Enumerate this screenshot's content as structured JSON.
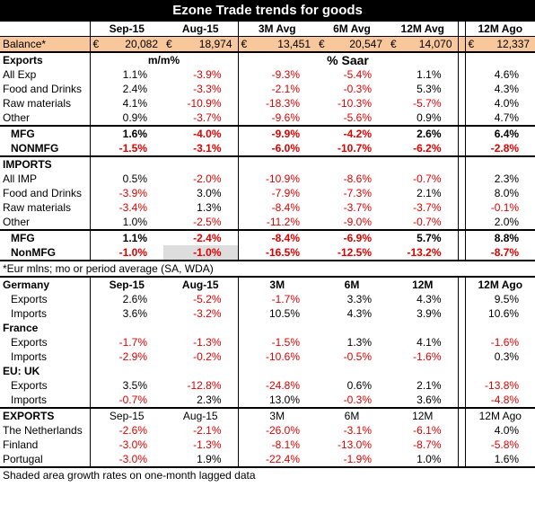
{
  "title": "Ezone Trade trends for goods",
  "columns": [
    "Sep-15",
    "Aug-15",
    "3M Avg",
    "6M Avg",
    "12M Avg",
    "12M Ago"
  ],
  "balance": {
    "label": "Balance*",
    "currency": "€",
    "values": [
      "20,082",
      "18,974",
      "13,451",
      "20,547",
      "14,070",
      "12,337"
    ]
  },
  "sections": [
    {
      "head": {
        "label": "Exports",
        "mm": "m/m%",
        "saar": "% Saar"
      },
      "rows": [
        {
          "label": "All Exp",
          "values": [
            "1.1%",
            "-3.9%",
            "-9.3%",
            "-5.4%",
            "1.1%",
            "4.6%"
          ]
        },
        {
          "label": "Food and Drinks",
          "values": [
            "2.4%",
            "-3.3%",
            "-2.1%",
            "-0.3%",
            "5.3%",
            "4.3%"
          ]
        },
        {
          "label": "Raw materials",
          "values": [
            "4.1%",
            "-10.9%",
            "-18.3%",
            "-10.3%",
            "-5.7%",
            "4.0%"
          ]
        },
        {
          "label": "Other",
          "values": [
            "0.9%",
            "-3.7%",
            "-9.6%",
            "-5.6%",
            "0.9%",
            "4.7%"
          ]
        }
      ]
    },
    {
      "rows": [
        {
          "label": "MFG",
          "bold": true,
          "indent": true,
          "values": [
            "1.6%",
            "-4.0%",
            "-9.9%",
            "-4.2%",
            "2.6%",
            "6.4%"
          ]
        },
        {
          "label": "NONMFG",
          "bold": true,
          "indent": true,
          "values": [
            "-1.5%",
            "-3.1%",
            "-6.0%",
            "-10.7%",
            "-6.2%",
            "-2.8%"
          ]
        }
      ]
    },
    {
      "head": {
        "label": "IMPORTS"
      },
      "rows": [
        {
          "label": "All IMP",
          "values": [
            "0.5%",
            "-2.0%",
            "-10.9%",
            "-8.6%",
            "-0.7%",
            "2.3%"
          ]
        },
        {
          "label": "Food and Drinks",
          "values": [
            "-3.9%",
            "3.0%",
            "-7.9%",
            "-7.3%",
            "2.1%",
            "8.0%"
          ]
        },
        {
          "label": "Raw materials",
          "values": [
            "-3.4%",
            "1.3%",
            "-8.4%",
            "-3.7%",
            "-3.7%",
            "-0.1%"
          ]
        },
        {
          "label": "Other",
          "values": [
            "1.0%",
            "-2.5%",
            "-11.2%",
            "-9.0%",
            "-0.7%",
            "2.0%"
          ]
        }
      ]
    },
    {
      "rows": [
        {
          "label": "MFG",
          "bold": true,
          "indent": true,
          "values": [
            "1.1%",
            "-2.4%",
            "-8.4%",
            "-6.9%",
            "5.7%",
            "8.8%"
          ]
        },
        {
          "label": "NonMFG",
          "bold": true,
          "indent": true,
          "shaded": [
            1
          ],
          "values": [
            "-1.0%",
            "-1.0%",
            "-16.5%",
            "-12.5%",
            "-13.2%",
            "-8.7%"
          ]
        }
      ]
    },
    {
      "note": "*Eur mlns; mo or period average (SA, WDA)"
    },
    {
      "head": {
        "label": "Germany",
        "cols": [
          "Sep-15",
          "Aug-15",
          "3M",
          "6M",
          "12M",
          "12M Ago"
        ],
        "bold": true
      },
      "rows": [
        {
          "label": "Exports",
          "indent": true,
          "values": [
            "2.6%",
            "-5.2%",
            "-1.7%",
            "3.3%",
            "4.3%",
            "9.5%"
          ]
        },
        {
          "label": "Imports",
          "indent": true,
          "values": [
            "3.6%",
            "-3.2%",
            "10.5%",
            "4.3%",
            "3.9%",
            "10.6%"
          ]
        },
        {
          "label": "France",
          "bold": true
        },
        {
          "label": "Exports",
          "indent": true,
          "values": [
            "-1.7%",
            "-1.3%",
            "-1.5%",
            "1.3%",
            "4.1%",
            "-1.6%"
          ]
        },
        {
          "label": "Imports",
          "indent": true,
          "values": [
            "-2.9%",
            "-0.2%",
            "-10.6%",
            "-0.5%",
            "-1.6%",
            "0.3%"
          ]
        },
        {
          "label": "EU: UK",
          "bold": true
        },
        {
          "label": "Exports",
          "indent": true,
          "values": [
            "3.5%",
            "-12.8%",
            "-24.8%",
            "0.6%",
            "2.1%",
            "-13.8%"
          ]
        },
        {
          "label": "Imports",
          "indent": true,
          "values": [
            "-0.7%",
            "2.3%",
            "13.0%",
            "-0.3%",
            "3.6%",
            "-4.8%"
          ]
        }
      ]
    },
    {
      "head": {
        "label": "EXPORTS",
        "cols": [
          "Sep-15",
          "Aug-15",
          "3M",
          "6M",
          "12M",
          "12M Ago"
        ]
      },
      "rows": [
        {
          "label": "The Netherlands",
          "values": [
            "-2.6%",
            "-2.1%",
            "-26.0%",
            "-3.1%",
            "-6.1%",
            "4.0%"
          ]
        },
        {
          "label": "Finland",
          "values": [
            "-3.0%",
            "-1.3%",
            "-8.1%",
            "-13.0%",
            "-8.7%",
            "-5.8%"
          ]
        },
        {
          "label": "Portugal",
          "values": [
            "-3.0%",
            "1.9%",
            "-22.4%",
            "-1.9%",
            "1.0%",
            "1.6%"
          ]
        }
      ]
    },
    {
      "note": "Shaded area growth rates on one-month lagged data"
    }
  ]
}
